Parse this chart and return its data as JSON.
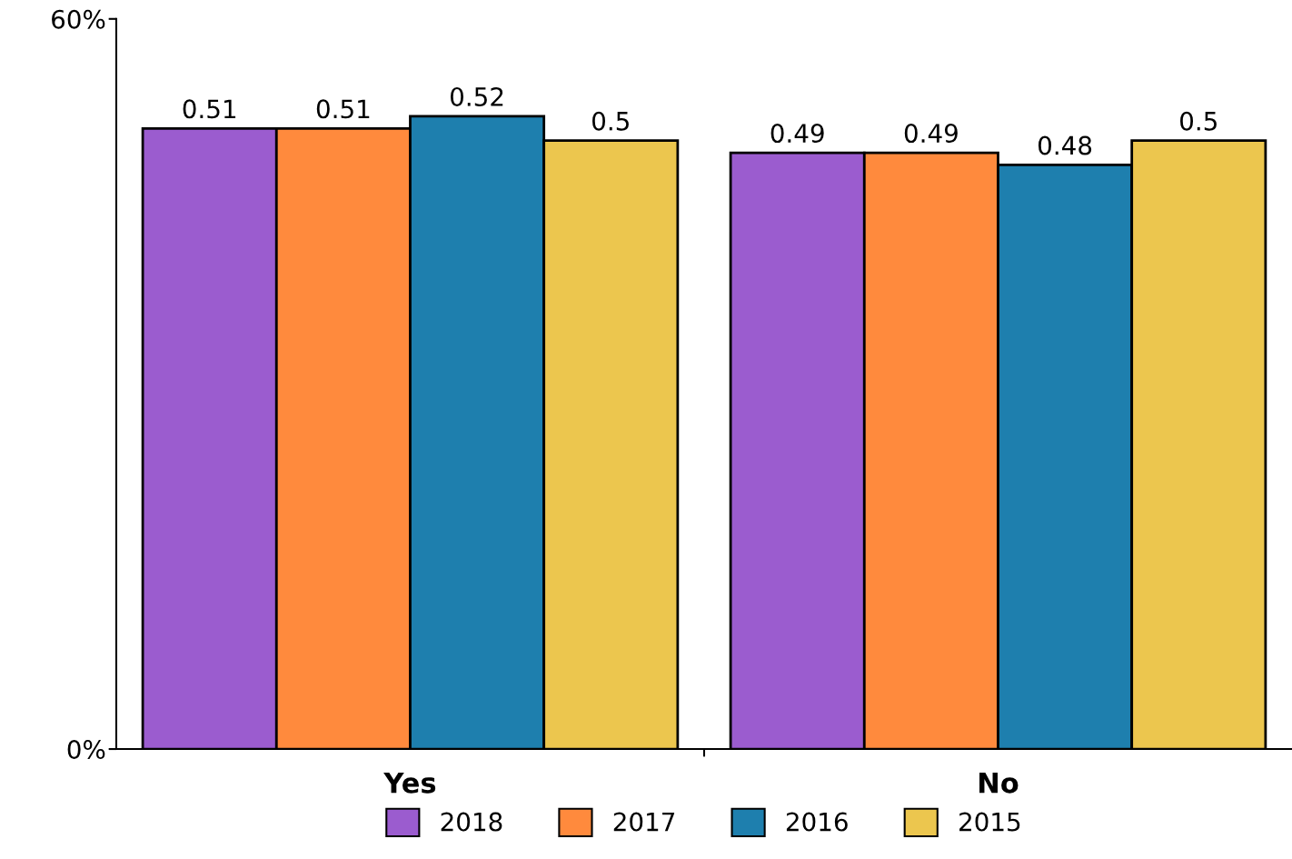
{
  "chart_data": {
    "type": "bar",
    "categories": [
      "Yes",
      "No"
    ],
    "series": [
      {
        "name": "2018",
        "color": "#9b5ccf",
        "values": [
          0.51,
          0.49
        ]
      },
      {
        "name": "2017",
        "color": "#ff8a3d",
        "values": [
          0.51,
          0.49
        ]
      },
      {
        "name": "2016",
        "color": "#1e7fae",
        "values": [
          0.52,
          0.48
        ]
      },
      {
        "name": "2015",
        "color": "#ecc64e",
        "values": [
          0.5,
          0.5
        ]
      }
    ],
    "ylim": [
      0,
      0.6
    ],
    "yticks": [
      {
        "value": 0,
        "label": "0%"
      },
      {
        "value": 0.6,
        "label": "60%"
      }
    ],
    "data_labels": true,
    "grid": false,
    "legend": "bottom"
  }
}
